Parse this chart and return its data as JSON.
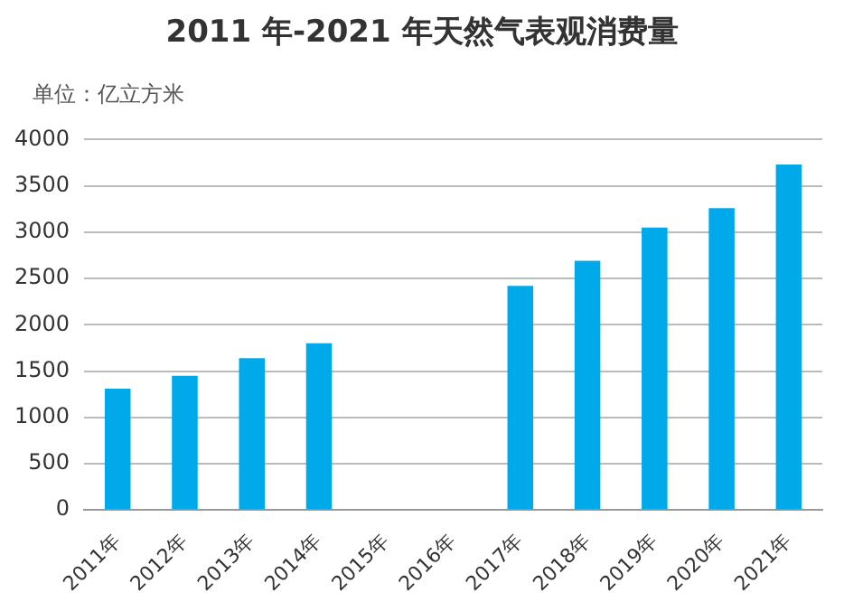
{
  "chart_data": {
    "type": "bar",
    "title": "2011 年-2021 年天然气表观消费量",
    "subtitle": "单位：亿立方米",
    "categories": [
      "2011年",
      "2012年",
      "2013年",
      "2014年",
      "2015年",
      "2016年",
      "2017年",
      "2018年",
      "2019年",
      "2020年",
      "2021年"
    ],
    "values": [
      1310,
      1450,
      1640,
      1800,
      null,
      null,
      2420,
      2690,
      3050,
      3260,
      3730
    ],
    "color": "#00a9ea",
    "ylim": [
      0,
      4000
    ],
    "yticks": [
      0,
      500,
      1000,
      1500,
      2000,
      2500,
      3000,
      3500,
      4000
    ],
    "grid": "y",
    "legend": false
  }
}
